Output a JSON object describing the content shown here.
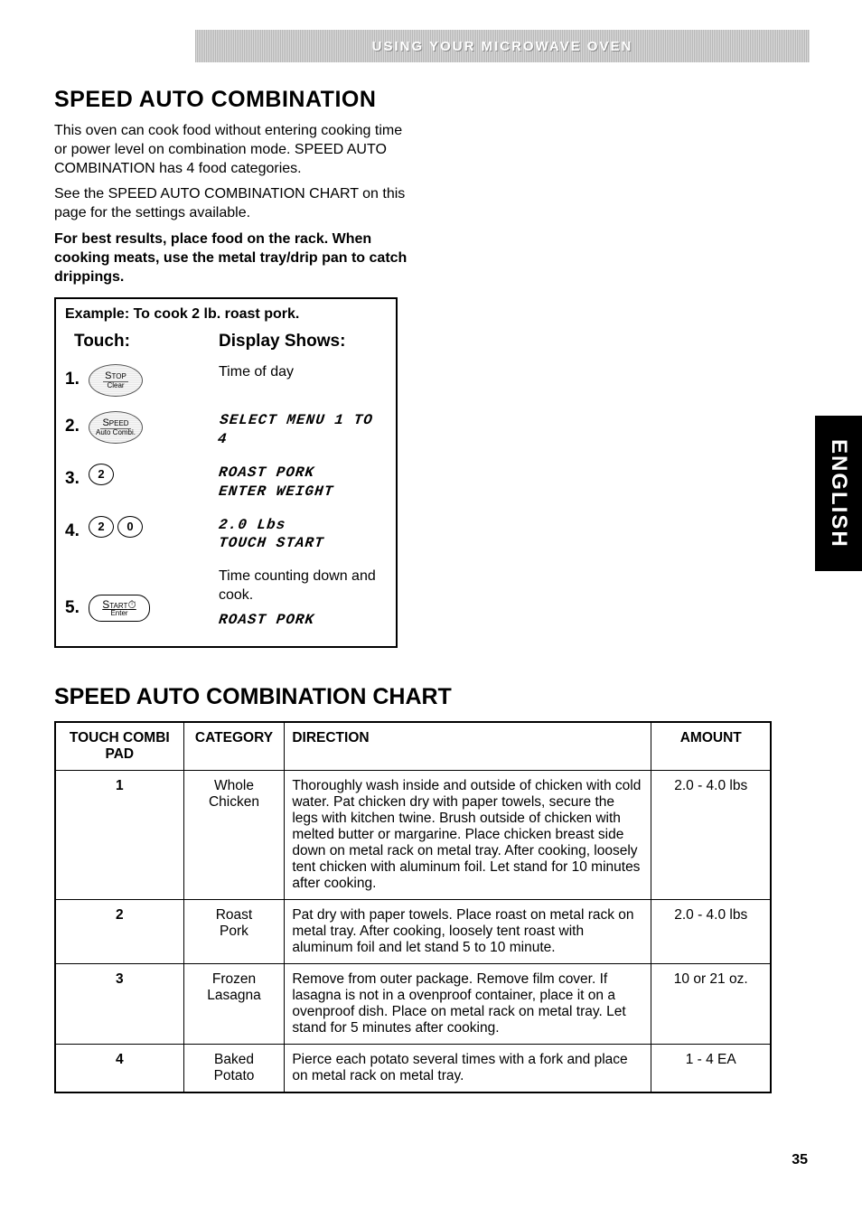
{
  "header": {
    "section_title": "USING YOUR MICROWAVE OVEN",
    "side_tab": "ENGLISH",
    "page_number": "35"
  },
  "section1": {
    "title": "SPEED AUTO COMBINATION",
    "p1": "This oven can cook food without entering cooking time or power level on combination mode. SPEED AUTO COMBINATION has 4 food categories.",
    "p2": "See the SPEED AUTO COMBINATION CHART on this page for the settings available.",
    "p3": "For best results, place food on the rack. When cooking meats, use the metal tray/drip pan to catch drippings."
  },
  "example": {
    "title": "Example: To cook 2 lb. roast pork.",
    "col_touch": "Touch:",
    "col_display": "Display Shows:",
    "steps": [
      {
        "num": "1.",
        "button_type": "oval",
        "button_top": "Stop",
        "button_bot": "Clear",
        "display_plain": "Time of day"
      },
      {
        "num": "2.",
        "button_type": "oval",
        "button_top": "Speed",
        "button_bot": "Auto Combi.",
        "display_seg1": "SELECT MENU 1 TO 4"
      },
      {
        "num": "3.",
        "button_type": "circ",
        "button1": "2",
        "display_seg1": "ROAST PORK",
        "display_seg2": "ENTER WEIGHT"
      },
      {
        "num": "4.",
        "button_type": "circ2",
        "button1": "2",
        "button2": "0",
        "display_seg1": "2.0 Lbs",
        "display_seg2": "TOUCH START"
      },
      {
        "num": "5.",
        "button_type": "start",
        "button_top": "Start",
        "button_bot": "Enter",
        "display_plain": "Time counting down and cook.",
        "display_seg1": "ROAST PORK"
      }
    ]
  },
  "chart": {
    "title": "SPEED AUTO COMBINATION CHART",
    "columns": [
      "TOUCH COMBI PAD",
      "CATEGORY",
      "DIRECTION",
      "AMOUNT"
    ],
    "rows": [
      {
        "pad": "1",
        "category": "Whole Chicken",
        "direction": "Thoroughly wash inside and outside of chicken with cold water. Pat chicken dry with paper towels, secure the legs with kitchen twine. Brush outside of chicken with melted butter or margarine. Place chicken breast side down on metal rack on metal tray. After cooking, loosely tent chicken with aluminum foil. Let stand for 10 minutes after cooking.",
        "amount": "2.0 - 4.0 lbs"
      },
      {
        "pad": "2",
        "category": "Roast Pork",
        "direction": "Pat dry with paper towels. Place roast on metal rack on metal tray. After cooking, loosely tent roast with aluminum foil and let stand 5 to 10 minute.",
        "amount": "2.0 - 4.0 lbs"
      },
      {
        "pad": "3",
        "category": "Frozen Lasagna",
        "direction": "Remove from outer package. Remove film cover. If lasagna is not in a ovenproof container, place it on a ovenproof dish. Place on metal rack on metal tray. Let stand for 5 minutes after cooking.",
        "amount": "10 or 21 oz."
      },
      {
        "pad": "4",
        "category": "Baked Potato",
        "direction": "Pierce each potato several times with a fork and place on metal rack on metal tray.",
        "amount": "1 - 4 EA"
      }
    ]
  }
}
